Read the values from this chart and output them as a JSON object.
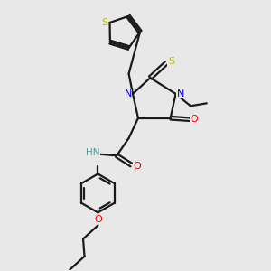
{
  "background_color": "#e8e8e8",
  "bond_color": "#1a1a1a",
  "nitrogen_color": "#0000ee",
  "oxygen_color": "#ee0000",
  "sulfur_color": "#bbbb00",
  "nh_color": "#4a9a9a",
  "line_width": 1.6,
  "figsize": [
    3.0,
    3.0
  ],
  "dpi": 100,
  "xlim": [
    0,
    10
  ],
  "ylim": [
    0,
    10
  ]
}
